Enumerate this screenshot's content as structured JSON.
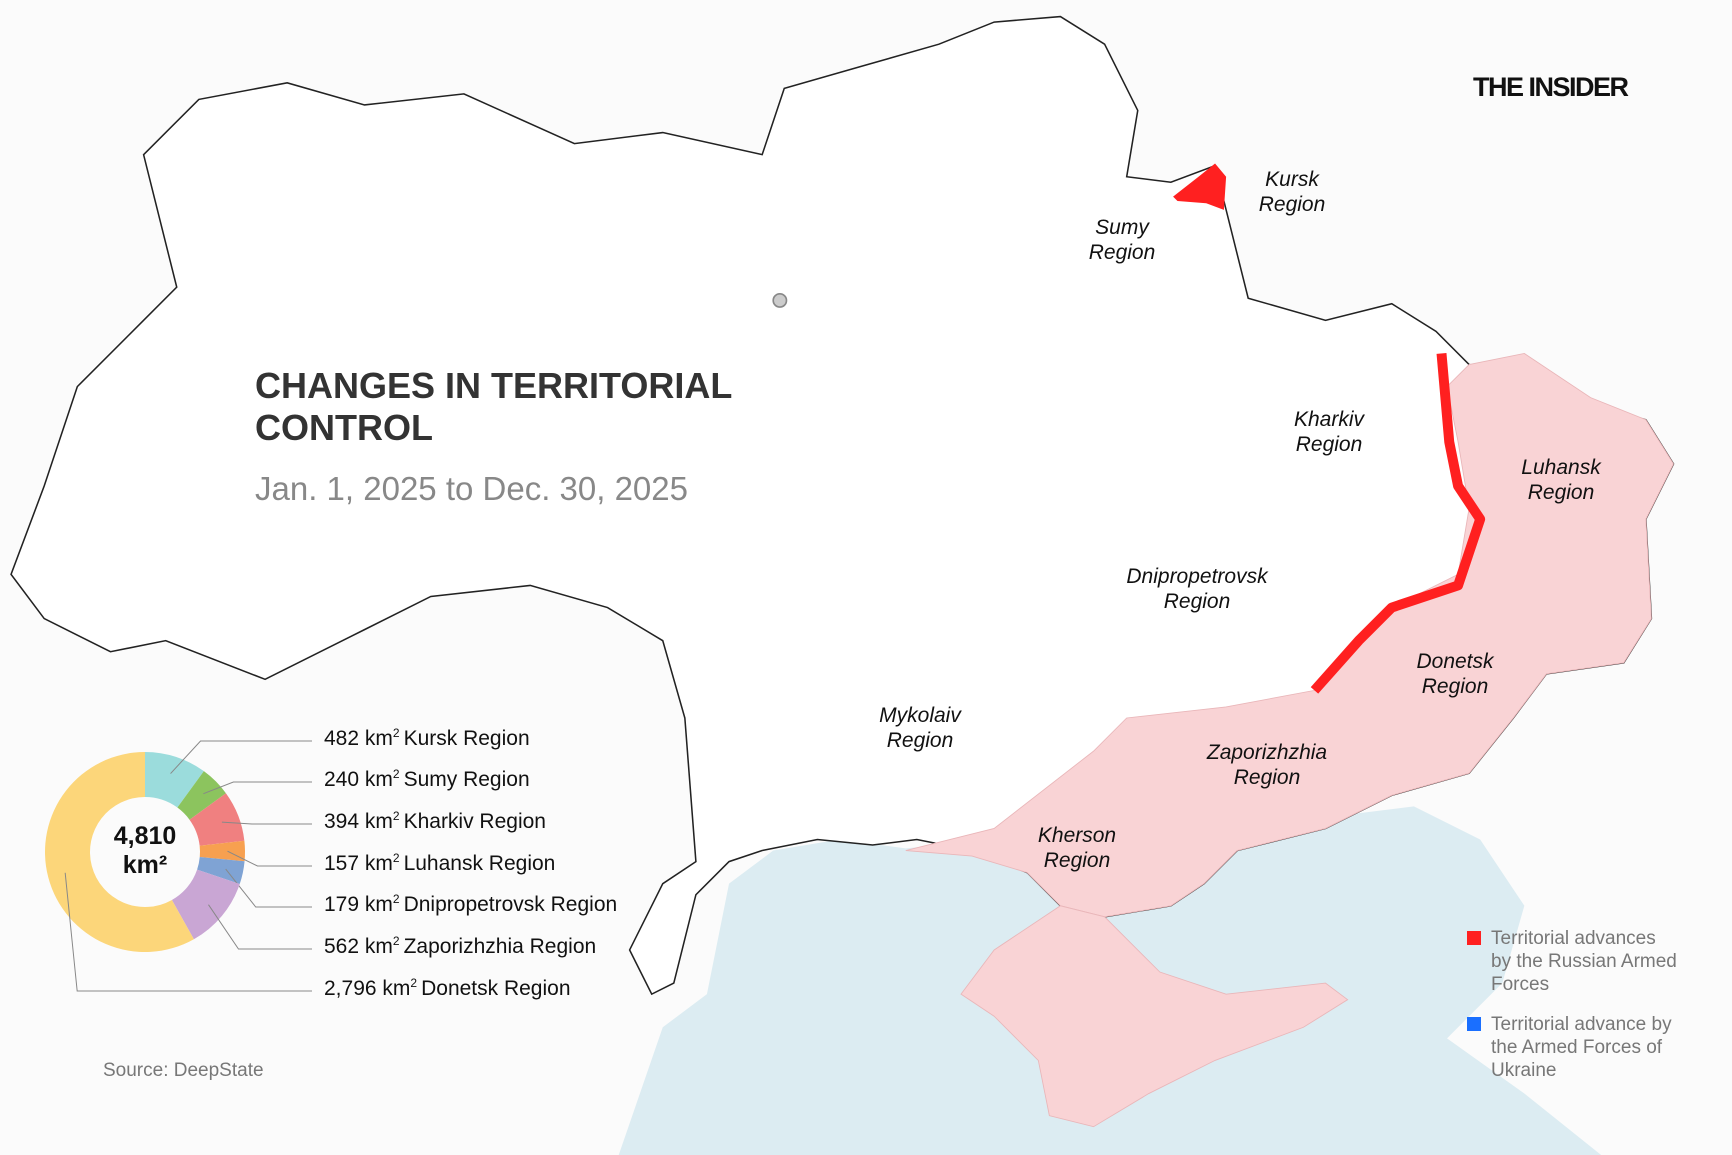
{
  "brand": "THE INSIDER",
  "title": "CHANGES IN TERRITORIAL CONTROL",
  "subtitle": "Jan. 1, 2025 to Dec. 30, 2025",
  "source": "Source: DeepState",
  "regions": {
    "kursk": "Kursk Region",
    "sumy": "Sumy Region",
    "kharkiv": "Kharkiv Region",
    "luhansk": "Luhansk Region",
    "dnipropetrovsk": "Dnipropetrovsk Region",
    "donetsk": "Donetsk Region",
    "zaporizhzhia": "Zaporizhzhia Region",
    "mykolaiv": "Mykolaiv Region",
    "kherson": "Kherson Region"
  },
  "donut": {
    "total_value": "4,810",
    "total_unit": "km²",
    "unit": "km",
    "unit_sup": "2",
    "items": [
      {
        "value": "482",
        "amount": 482,
        "label": "Kursk Region",
        "color": "#9bdcdc"
      },
      {
        "value": "240",
        "amount": 240,
        "label": "Sumy Region",
        "color": "#8cc45e"
      },
      {
        "value": "394",
        "amount": 394,
        "label": "Kharkiv Region",
        "color": "#f08080"
      },
      {
        "value": "157",
        "amount": 157,
        "label": "Luhansk Region",
        "color": "#f7a050"
      },
      {
        "value": "179",
        "amount": 179,
        "label": "Dnipropetrovsk Region",
        "color": "#7fa3d4"
      },
      {
        "value": "562",
        "amount": 562,
        "label": "Zaporizhzhia Region",
        "color": "#c9a6d4"
      },
      {
        "value": "2,796",
        "amount": 2796,
        "label": "Donetsk Region",
        "color": "#fcd67a"
      }
    ]
  },
  "key": [
    {
      "label": "Territorial advances by the Russian Armed Forces",
      "color": "#ff2020"
    },
    {
      "label": "Territorial advance by the Armed Forces of Ukraine",
      "color": "#1a6fff"
    }
  ],
  "colors": {
    "occupied": "#f9d3d5",
    "sea": "#dcecf2",
    "land": "#ffffff",
    "border": "#222222"
  }
}
